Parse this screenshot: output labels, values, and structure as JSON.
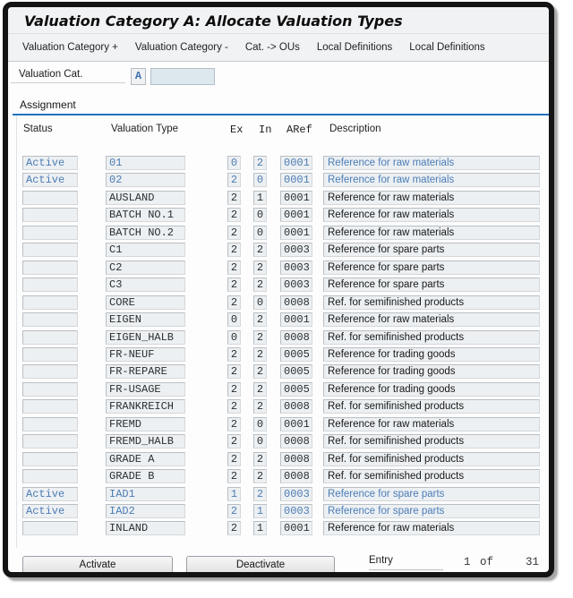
{
  "window": {
    "title": "Valuation Category A: Allocate Valuation Types"
  },
  "toolbar": {
    "items": [
      {
        "label": "Valuation Category +"
      },
      {
        "label": "Valuation Category -"
      },
      {
        "label": "Cat. -> OUs"
      },
      {
        "label": "Local Definitions"
      },
      {
        "label": "Local Definitions"
      }
    ]
  },
  "filter": {
    "label": "Valuation Cat.",
    "value": "A",
    "second_value": ""
  },
  "section": {
    "title": "Assignment"
  },
  "table": {
    "columns": [
      "Status",
      "Valuation Type",
      "Ex",
      "In",
      "ARef",
      "Description"
    ],
    "rows": [
      {
        "status": "Active",
        "type": "01",
        "ex": "0",
        "in": "2",
        "aref": "0001",
        "description": "Reference for raw materials",
        "active": true
      },
      {
        "status": "Active",
        "type": "02",
        "ex": "2",
        "in": "0",
        "aref": "0001",
        "description": "Reference for raw materials",
        "active": true
      },
      {
        "status": "",
        "type": "AUSLAND",
        "ex": "2",
        "in": "1",
        "aref": "0001",
        "description": "Reference for raw materials",
        "active": false
      },
      {
        "status": "",
        "type": "BATCH NO.1",
        "ex": "2",
        "in": "0",
        "aref": "0001",
        "description": "Reference for raw materials",
        "active": false
      },
      {
        "status": "",
        "type": "BATCH NO.2",
        "ex": "2",
        "in": "0",
        "aref": "0001",
        "description": "Reference for raw materials",
        "active": false
      },
      {
        "status": "",
        "type": "C1",
        "ex": "2",
        "in": "2",
        "aref": "0003",
        "description": "Reference for spare parts",
        "active": false
      },
      {
        "status": "",
        "type": "C2",
        "ex": "2",
        "in": "2",
        "aref": "0003",
        "description": "Reference for spare parts",
        "active": false
      },
      {
        "status": "",
        "type": "C3",
        "ex": "2",
        "in": "2",
        "aref": "0003",
        "description": "Reference for spare parts",
        "active": false
      },
      {
        "status": "",
        "type": "CORE",
        "ex": "2",
        "in": "0",
        "aref": "0008",
        "description": "Ref. for semifinished products",
        "active": false
      },
      {
        "status": "",
        "type": "EIGEN",
        "ex": "0",
        "in": "2",
        "aref": "0001",
        "description": "Reference for raw materials",
        "active": false
      },
      {
        "status": "",
        "type": "EIGEN_HALB",
        "ex": "0",
        "in": "2",
        "aref": "0008",
        "description": "Ref. for semifinished products",
        "active": false
      },
      {
        "status": "",
        "type": "FR-NEUF",
        "ex": "2",
        "in": "2",
        "aref": "0005",
        "description": "Reference for trading goods",
        "active": false
      },
      {
        "status": "",
        "type": "FR-REPARE",
        "ex": "2",
        "in": "2",
        "aref": "0005",
        "description": "Reference for trading goods",
        "active": false
      },
      {
        "status": "",
        "type": "FR-USAGE",
        "ex": "2",
        "in": "2",
        "aref": "0005",
        "description": "Reference for trading goods",
        "active": false
      },
      {
        "status": "",
        "type": "FRANKREICH",
        "ex": "2",
        "in": "2",
        "aref": "0008",
        "description": "Ref. for semifinished products",
        "active": false
      },
      {
        "status": "",
        "type": "FREMD",
        "ex": "2",
        "in": "0",
        "aref": "0001",
        "description": "Reference for raw materials",
        "active": false
      },
      {
        "status": "",
        "type": "FREMD_HALB",
        "ex": "2",
        "in": "0",
        "aref": "0008",
        "description": "Ref. for semifinished products",
        "active": false
      },
      {
        "status": "",
        "type": "GRADE A",
        "ex": "2",
        "in": "2",
        "aref": "0008",
        "description": "Ref. for semifinished products",
        "active": false
      },
      {
        "status": "",
        "type": "GRADE B",
        "ex": "2",
        "in": "2",
        "aref": "0008",
        "description": "Ref. for semifinished products",
        "active": false
      },
      {
        "status": "Active",
        "type": "IAD1",
        "ex": "1",
        "in": "2",
        "aref": "0003",
        "description": "Reference for spare parts",
        "active": true
      },
      {
        "status": "Active",
        "type": "IAD2",
        "ex": "2",
        "in": "1",
        "aref": "0003",
        "description": "Reference for spare parts",
        "active": true
      },
      {
        "status": "",
        "type": "INLAND",
        "ex": "2",
        "in": "1",
        "aref": "0001",
        "description": "Reference for raw materials",
        "active": false
      }
    ]
  },
  "footer": {
    "activate_label": "Activate",
    "deactivate_label": "Deactivate",
    "entry_label": "Entry",
    "entry_current": "1",
    "entry_of": "of",
    "entry_total": "31"
  },
  "colors": {
    "accent_blue": "#2471c0",
    "field_text_blue": "#4c7cb6",
    "field_bg": "#edf0f2",
    "field_border": "#c2c7cb"
  }
}
